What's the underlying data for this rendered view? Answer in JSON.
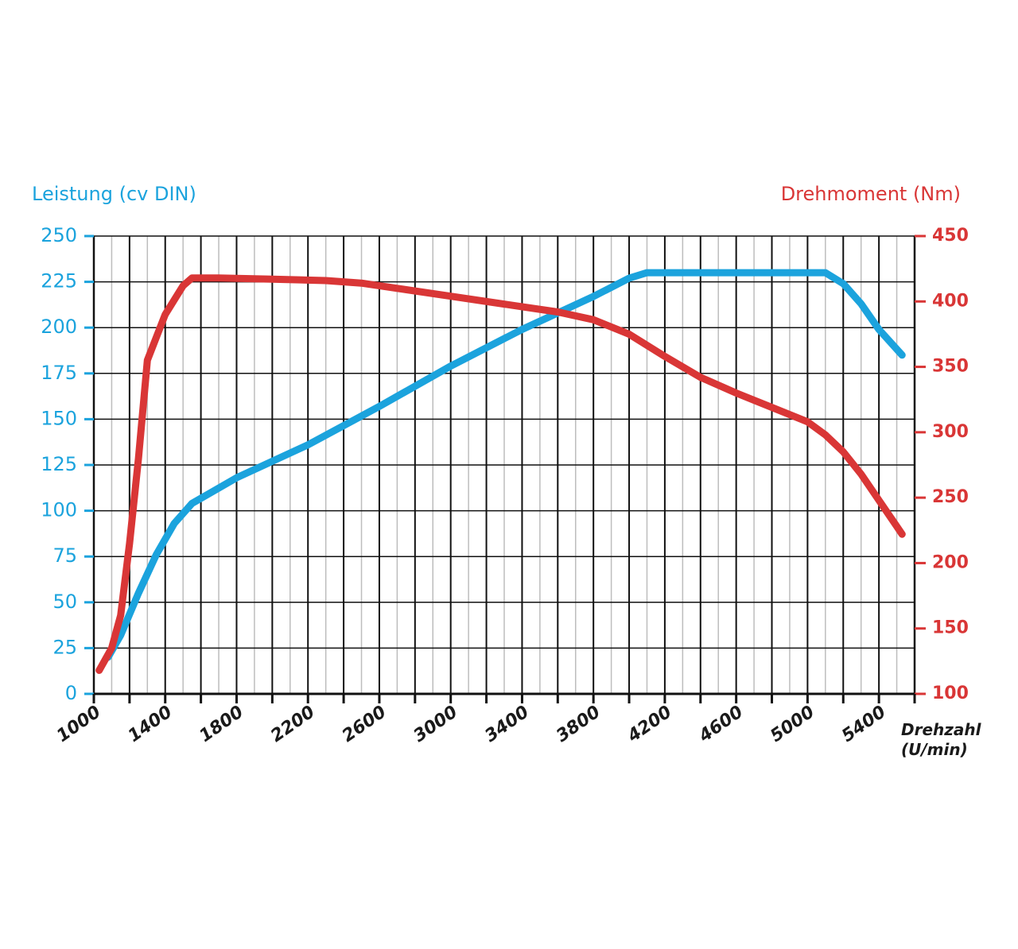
{
  "colors": {
    "power": "#1ba3dd",
    "torque": "#d93636",
    "grid_major": "#111111",
    "grid_minor": "#bdbdbd"
  },
  "chart_data": {
    "type": "line",
    "title": "",
    "xlabel": "Drehzahl (U/min)",
    "xlabel_lines": [
      "Drehzahl",
      "(U/min)"
    ],
    "ylabel_left": "Leistung (cv DIN)",
    "ylabel_right": "Drehmoment (Nm)",
    "xlim": [
      1000,
      5600
    ],
    "ylim_left": [
      0,
      250
    ],
    "ylim_right": [
      100,
      450
    ],
    "x_ticks": [
      1000,
      1400,
      1800,
      2200,
      2600,
      3000,
      3400,
      3800,
      4200,
      4600,
      5000,
      5400
    ],
    "y_left_ticks": [
      0,
      25,
      50,
      75,
      100,
      125,
      150,
      175,
      200,
      225,
      250
    ],
    "y_right_ticks": [
      100,
      150,
      200,
      250,
      300,
      350,
      400,
      450
    ],
    "grid": true,
    "series": [
      {
        "name": "Leistung (cv DIN)",
        "axis": "left",
        "color": "#1ba3dd",
        "x": [
          1080,
          1150,
          1250,
          1350,
          1450,
          1550,
          1800,
          2200,
          2600,
          3000,
          3400,
          3800,
          4000,
          4100,
          4500,
          5000,
          5100,
          5200,
          5300,
          5400,
          5530
        ],
        "y": [
          20,
          32,
          55,
          76,
          93,
          104,
          118,
          136,
          157,
          179,
          199,
          217,
          227,
          230,
          230,
          230,
          230,
          224,
          213,
          199,
          185
        ]
      },
      {
        "name": "Drehmoment (Nm)",
        "axis": "right",
        "color": "#d93636",
        "x": [
          1030,
          1100,
          1150,
          1200,
          1250,
          1300,
          1400,
          1500,
          1550,
          1700,
          2000,
          2300,
          2500,
          2700,
          3000,
          3400,
          3600,
          3800,
          4000,
          4200,
          4400,
          4600,
          4800,
          5000,
          5100,
          5200,
          5300,
          5400,
          5500,
          5530
        ],
        "y": [
          118,
          135,
          160,
          215,
          280,
          355,
          390,
          412,
          418,
          418,
          417,
          416,
          414,
          410,
          404,
          396,
          392,
          386,
          375,
          358,
          342,
          330,
          319,
          308,
          298,
          285,
          268,
          248,
          228,
          222
        ]
      }
    ]
  }
}
